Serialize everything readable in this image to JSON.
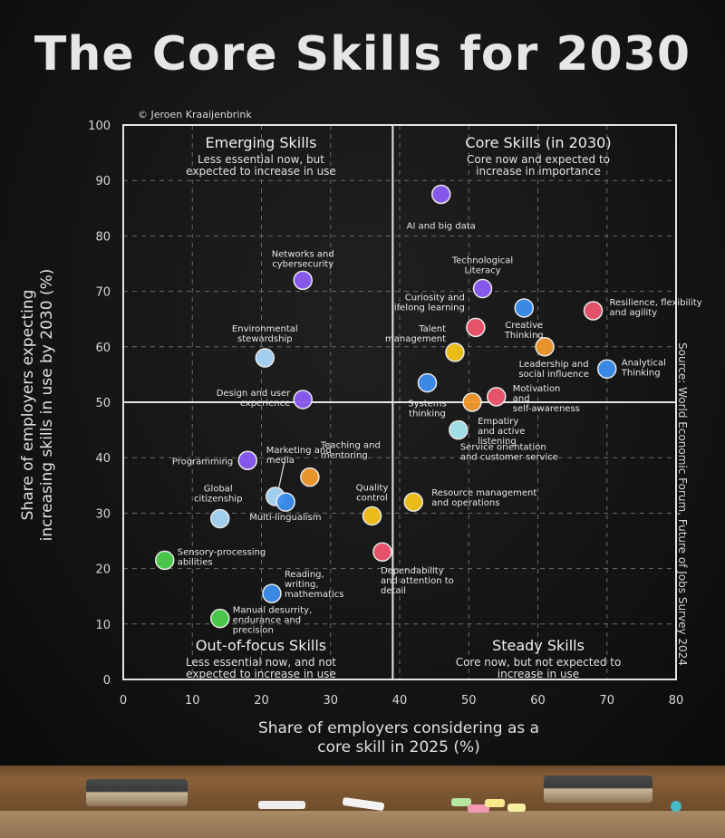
{
  "header": {
    "title": "The Core Skills for 2030",
    "credit": "© Jeroen Kraaijenbrink",
    "source": "Source: World Economic Forum, Future of Jobs Survey 2024"
  },
  "chart_data": {
    "type": "scatter",
    "xlabel": "Share of employers considering as a core skill in 2025 (%)",
    "ylabel": "Share of employers expecting increasing skills in use by 2030 (%)",
    "xlim": [
      0,
      80
    ],
    "ylim": [
      0,
      100
    ],
    "xticks": [
      "0",
      "10",
      "20",
      "30",
      "40",
      "50",
      "60",
      "70",
      "80"
    ],
    "yticks": [
      "0",
      "10",
      "20",
      "30",
      "40",
      "50",
      "60",
      "70",
      "80",
      "90",
      "100"
    ],
    "grid": true,
    "dividers": {
      "x": 39,
      "y": 50
    },
    "quadrants": [
      {
        "title": "Emerging Skills",
        "subtitle": "Less essential now, but expected to increase in use",
        "position": "top-left"
      },
      {
        "title": "Core Skills (in 2030)",
        "subtitle": "Core now and expected to increase in importance",
        "position": "top-right"
      },
      {
        "title": "Out-of-focus Skills",
        "subtitle": "Less essential now, and not expected to increase in use",
        "position": "bottom-left"
      },
      {
        "title": "Steady Skills",
        "subtitle": "Core now, but not expected to increase in use",
        "position": "bottom-right"
      }
    ],
    "points": [
      {
        "label": "AI and big data",
        "x": 46,
        "y": 87.5,
        "color": "#8b5cf6"
      },
      {
        "label": "Networks and cybersecurity",
        "x": 26,
        "y": 72,
        "color": "#8b5cf6"
      },
      {
        "label": "Technological Literacy",
        "x": 52,
        "y": 70.5,
        "color": "#8b5cf6"
      },
      {
        "label": "Creative Thinking",
        "x": 58,
        "y": 67,
        "color": "#3b8ff0"
      },
      {
        "label": "Resilience, flexibility and agility",
        "x": 68,
        "y": 66.5,
        "color": "#f0566e"
      },
      {
        "label": "Curiosity and lifelong learning",
        "x": 51,
        "y": 63.5,
        "color": "#f0566e"
      },
      {
        "label": "Leadership and social influence",
        "x": 61,
        "y": 60,
        "color": "#f59a2e"
      },
      {
        "label": "Talent management",
        "x": 48,
        "y": 59,
        "color": "#f5c518"
      },
      {
        "label": "Environmental stewardship",
        "x": 20.5,
        "y": 58,
        "color": "#a8d8f8"
      },
      {
        "label": "Analytical Thinking",
        "x": 70,
        "y": 56,
        "color": "#3b8ff0"
      },
      {
        "label": "Systems thinking",
        "x": 44,
        "y": 53.5,
        "color": "#3b8ff0"
      },
      {
        "label": "Motivation and self-awareness",
        "x": 54,
        "y": 51,
        "color": "#f0566e"
      },
      {
        "label": "Design and user experience",
        "x": 26,
        "y": 50.5,
        "color": "#8b5cf6"
      },
      {
        "label": "Empatiry and active listening",
        "x": 50.5,
        "y": 50,
        "color": "#f59a2e"
      },
      {
        "label": "Service orientation and customer service",
        "x": 48.5,
        "y": 45,
        "color": "#a8e8f0"
      },
      {
        "label": "Programming",
        "x": 18,
        "y": 39.5,
        "color": "#8b5cf6"
      },
      {
        "label": "Teaching and mentoring",
        "x": 27,
        "y": 36.5,
        "color": "#f59a2e"
      },
      {
        "label": "Marketing and media",
        "x": 22,
        "y": 33,
        "color": "#a8d8f8"
      },
      {
        "label": "Multi-lingualism",
        "x": 23.5,
        "y": 32,
        "color": "#3b8ff0"
      },
      {
        "label": "Resource management and operations",
        "x": 42,
        "y": 32,
        "color": "#f5c518"
      },
      {
        "label": "Global citizenship",
        "x": 14,
        "y": 29,
        "color": "#a8d8f8"
      },
      {
        "label": "Quality control",
        "x": 36,
        "y": 29.5,
        "color": "#f5c518"
      },
      {
        "label": "Dependability and attention to detail",
        "x": 37.5,
        "y": 23,
        "color": "#f0566e"
      },
      {
        "label": "Sensory-processing abilities",
        "x": 6,
        "y": 21.5,
        "color": "#4cd04c"
      },
      {
        "label": "Reading, writing, mathematics",
        "x": 21.5,
        "y": 15.5,
        "color": "#3b8ff0"
      },
      {
        "label": "Manual desurrity, endurance and precision",
        "x": 14,
        "y": 11,
        "color": "#4cd04c"
      }
    ]
  }
}
